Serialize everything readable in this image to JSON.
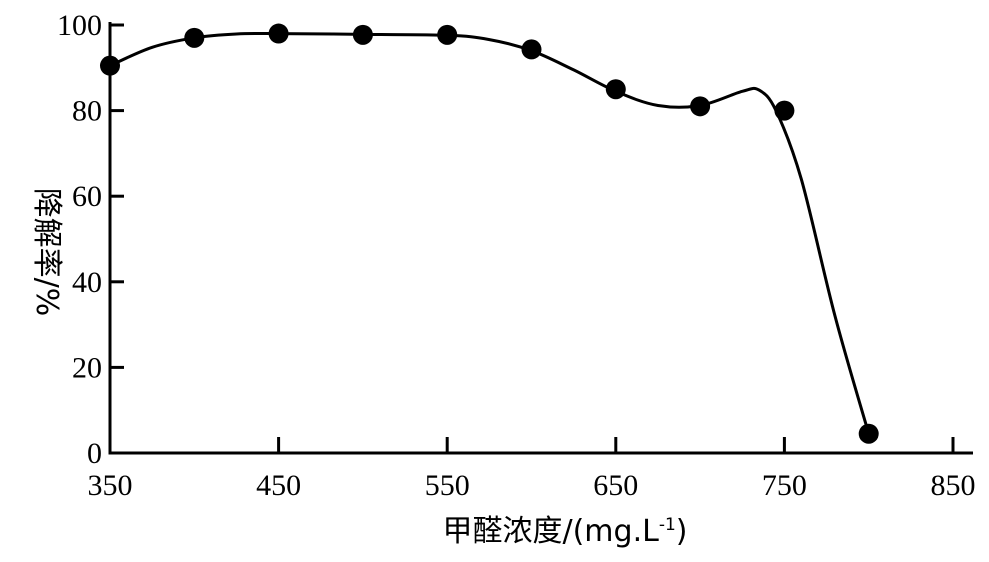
{
  "chart_data": {
    "type": "line",
    "title": "",
    "xlabel": "甲醛浓度/(mg.L",
    "xlabel_sup": "-1",
    "xlabel_tail": ")",
    "ylabel": "降解率/%",
    "xlim": [
      350,
      850
    ],
    "ylim": [
      0,
      100
    ],
    "xticks": [
      350,
      450,
      550,
      650,
      750,
      850
    ],
    "yticks": [
      0,
      20,
      40,
      60,
      80,
      100
    ],
    "xtick_labels": [
      "350",
      "450",
      "550",
      "650",
      "750",
      "850"
    ],
    "ytick_labels": [
      "0",
      "20",
      "40",
      "60",
      "80",
      "100"
    ],
    "grid": false,
    "legend": "none",
    "series": [
      {
        "marker": "filled-circle",
        "color": "#000000",
        "x": [
          350,
          400,
          450,
          500,
          550,
          600,
          650,
          700,
          750,
          800
        ],
        "y": [
          90.5,
          97,
          98,
          97.7,
          97.7,
          94.3,
          85,
          81,
          80,
          4.5
        ]
      }
    ],
    "smooth_curve": {
      "x": [
        350,
        375,
        400,
        425,
        450,
        500,
        550,
        575,
        600,
        625,
        650,
        675,
        700,
        725,
        735,
        745,
        760,
        780,
        800
      ],
      "y": [
        90.5,
        94.8,
        97,
        97.9,
        98,
        97.8,
        97.6,
        96.6,
        94,
        89.5,
        84.5,
        81.2,
        81.2,
        84.5,
        84.8,
        80,
        64,
        32,
        4.5
      ]
    }
  }
}
